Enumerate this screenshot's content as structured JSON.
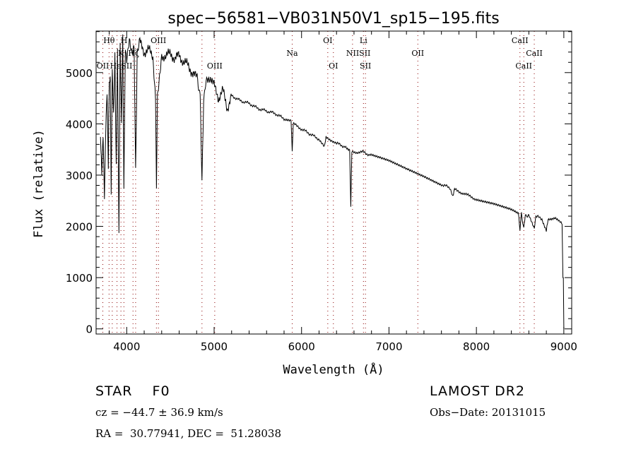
{
  "chart_data": {
    "type": "line",
    "title": "spec−56581−VB031N50V1_sp15−195.fits",
    "xlabel": "Wavelength (Å)",
    "ylabel": "Flux (relative)",
    "xlim": [
      3650,
      9090
    ],
    "ylim": [
      -100,
      5810
    ],
    "xticks": [
      4000,
      5000,
      6000,
      7000,
      8000,
      9000
    ],
    "yticks": [
      0,
      1000,
      2000,
      3000,
      4000,
      5000
    ],
    "grid": false,
    "spectrum": [
      [
        3700,
        3700
      ],
      [
        3715,
        3000
      ],
      [
        3730,
        3800
      ],
      [
        3745,
        2650
      ],
      [
        3760,
        3900
      ],
      [
        3775,
        4600
      ],
      [
        3790,
        3100
      ],
      [
        3800,
        4800
      ],
      [
        3812,
        5000
      ],
      [
        3822,
        2560
      ],
      [
        3835,
        5100
      ],
      [
        3850,
        4200
      ],
      [
        3865,
        5300
      ],
      [
        3880,
        3100
      ],
      [
        3895,
        5400
      ],
      [
        3911,
        1910
      ],
      [
        3925,
        5600
      ],
      [
        3940,
        4000
      ],
      [
        3955,
        5700
      ],
      [
        3968,
        2700
      ],
      [
        3985,
        5500
      ],
      [
        4000,
        5300
      ],
      [
        4030,
        5700
      ],
      [
        4060,
        5400
      ],
      [
        4085,
        5600
      ],
      [
        4102,
        3050
      ],
      [
        4120,
        5300
      ],
      [
        4150,
        5600
      ],
      [
        4200,
        5400
      ],
      [
        4250,
        5450
      ],
      [
        4300,
        5300
      ],
      [
        4330,
        4500
      ],
      [
        4340,
        2850
      ],
      [
        4352,
        4600
      ],
      [
        4400,
        5350
      ],
      [
        4450,
        5300
      ],
      [
        4500,
        5400
      ],
      [
        4550,
        5250
      ],
      [
        4600,
        5350
      ],
      [
        4650,
        5200
      ],
      [
        4700,
        5150
      ],
      [
        4750,
        5000
      ],
      [
        4800,
        4900
      ],
      [
        4840,
        4600
      ],
      [
        4861,
        2900
      ],
      [
        4880,
        4500
      ],
      [
        4920,
        4900
      ],
      [
        5000,
        4750
      ],
      [
        5050,
        4500
      ],
      [
        5100,
        4650
      ],
      [
        5150,
        4300
      ],
      [
        5200,
        4550
      ],
      [
        5300,
        4450
      ],
      [
        5400,
        4400
      ],
      [
        5500,
        4300
      ],
      [
        5600,
        4250
      ],
      [
        5700,
        4200
      ],
      [
        5800,
        4100
      ],
      [
        5880,
        4050
      ],
      [
        5893,
        3450
      ],
      [
        5905,
        4000
      ],
      [
        6000,
        3900
      ],
      [
        6100,
        3800
      ],
      [
        6200,
        3700
      ],
      [
        6260,
        3550
      ],
      [
        6280,
        3750
      ],
      [
        6400,
        3620
      ],
      [
        6500,
        3550
      ],
      [
        6550,
        3500
      ],
      [
        6563,
        2350
      ],
      [
        6575,
        3450
      ],
      [
        6700,
        3450
      ],
      [
        6800,
        3380
      ],
      [
        7000,
        3270
      ],
      [
        7200,
        3120
      ],
      [
        7400,
        2980
      ],
      [
        7600,
        2820
      ],
      [
        7700,
        2750
      ],
      [
        7730,
        2600
      ],
      [
        7750,
        2720
      ],
      [
        8000,
        2530
      ],
      [
        8200,
        2440
      ],
      [
        8400,
        2320
      ],
      [
        8480,
        2280
      ],
      [
        8498,
        1950
      ],
      [
        8515,
        2250
      ],
      [
        8542,
        1950
      ],
      [
        8560,
        2220
      ],
      [
        8600,
        2200
      ],
      [
        8662,
        1980
      ],
      [
        8680,
        2200
      ],
      [
        8750,
        2150
      ],
      [
        8800,
        1900
      ],
      [
        8820,
        2150
      ],
      [
        8900,
        2150
      ],
      [
        8980,
        2050
      ],
      [
        8990,
        1000
      ],
      [
        8995,
        1000
      ],
      [
        9000,
        0
      ]
    ],
    "lines": [
      {
        "label": "Hθ",
        "wl": 3798,
        "row": 1
      },
      {
        "label": "H",
        "wl": 3970,
        "row": 1
      },
      {
        "label": "OIII",
        "wl": 4363,
        "row": 1
      },
      {
        "label": "K",
        "wl": 3934,
        "row": 2
      },
      {
        "label": "Hζ",
        "wl": 4080,
        "row": 2
      },
      {
        "label": "OII",
        "wl": 3727,
        "row": 3
      },
      {
        "label": "Hε",
        "wl": 3870,
        "row": 3
      },
      {
        "label": "SII",
        "wl": 4000,
        "row": 3
      },
      {
        "label": "OIII",
        "wl": 5007,
        "row": 3
      },
      {
        "label": "Na",
        "wl": 5893,
        "row": 2
      },
      {
        "label": "OI",
        "wl": 6300,
        "row": 1
      },
      {
        "label": "OI",
        "wl": 6364,
        "row": 3
      },
      {
        "label": "Li",
        "wl": 6708,
        "row": 1
      },
      {
        "label": "NIISII",
        "wl": 6650,
        "row": 2
      },
      {
        "label": "SII",
        "wl": 6731,
        "row": 3
      },
      {
        "label": "OII",
        "wl": 7330,
        "row": 2
      },
      {
        "label": "CaII",
        "wl": 8498,
        "row": 1
      },
      {
        "label": "CaII",
        "wl": 8662,
        "row": 2
      },
      {
        "label": "CaII",
        "wl": 8542,
        "row": 3
      }
    ],
    "line_markers": [
      3727,
      3798,
      3835,
      3889,
      3934,
      3968,
      4072,
      4102,
      4340,
      4363,
      4861,
      5007,
      5893,
      6300,
      6364,
      6583,
      6708,
      6731,
      7330,
      8498,
      8542,
      8662
    ],
    "marker_color": "#8b0000"
  },
  "info": {
    "class_label": "STAR    F0",
    "survey": "LAMOST DR2",
    "cz": "cz = −44.7 ± 36.9 km/s",
    "obs_date": "Obs−Date: 20131015",
    "coords": "RA =  30.77941, DEC =  51.28038"
  }
}
